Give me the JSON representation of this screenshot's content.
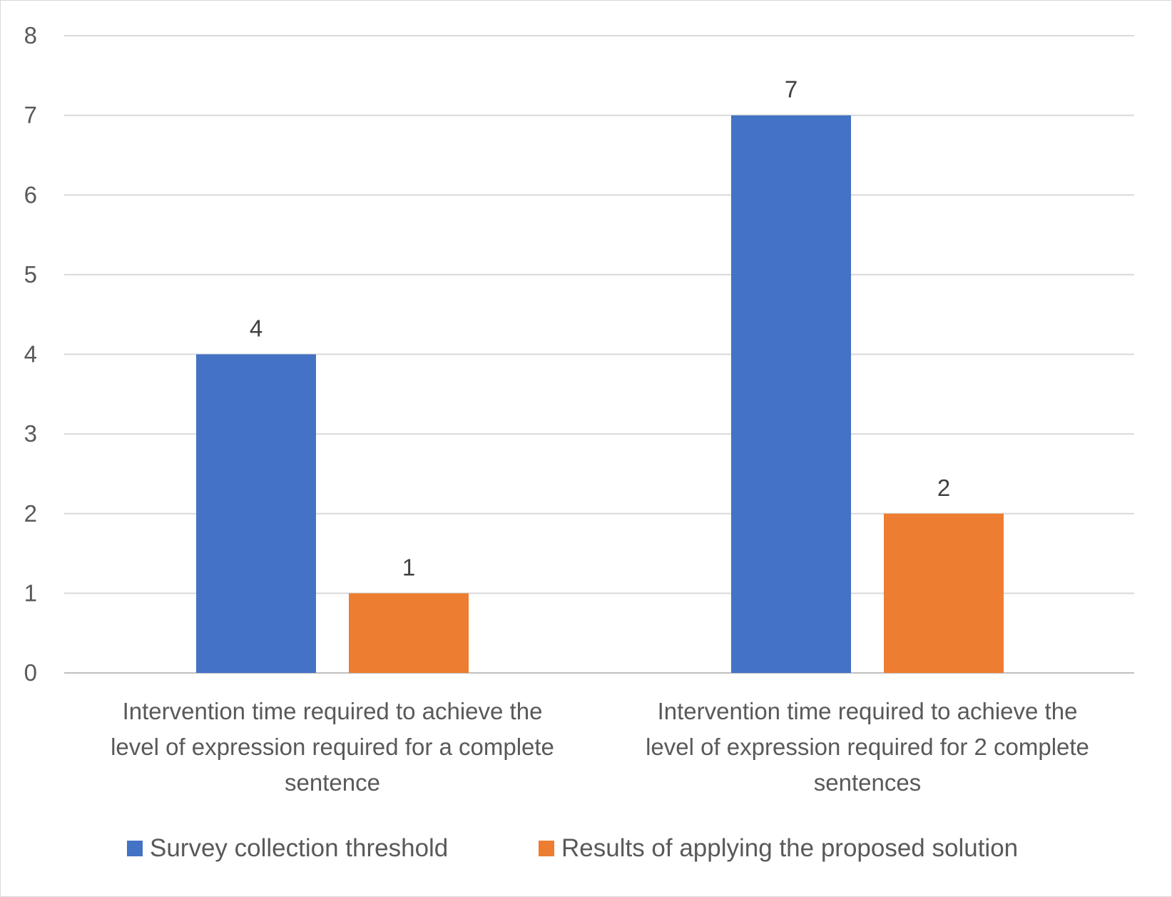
{
  "chart_data": {
    "type": "bar",
    "title": "",
    "xlabel": "",
    "ylabel": "",
    "ylim": [
      0,
      8
    ],
    "yticks": [
      0,
      1,
      2,
      3,
      4,
      5,
      6,
      7,
      8
    ],
    "grid": true,
    "legend_position": "bottom",
    "categories": [
      [
        "Intervention time required to achieve the",
        "level of expression required for a complete",
        "sentence"
      ],
      [
        "Intervention time required to achieve the",
        "level of expression required for 2 complete",
        "sentences"
      ]
    ],
    "series": [
      {
        "name": "Survey collection threshold",
        "color": "#4472c4",
        "values": [
          4,
          7
        ]
      },
      {
        "name": "Results of applying the proposed solution",
        "color": "#ed7d31",
        "values": [
          1,
          2
        ]
      }
    ]
  }
}
